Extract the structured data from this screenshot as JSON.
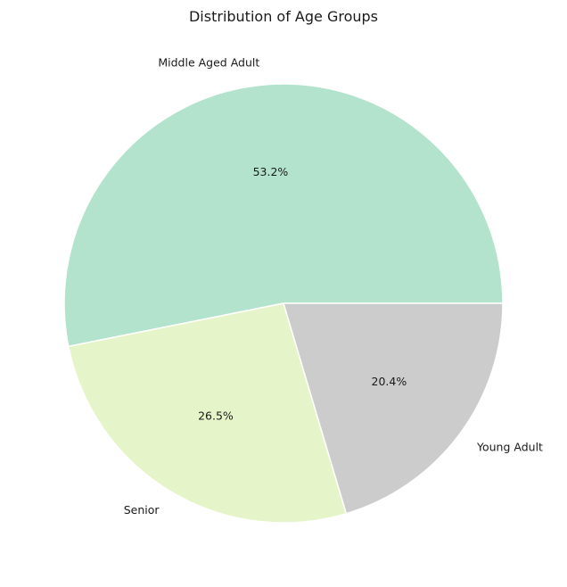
{
  "chart_data": {
    "type": "pie",
    "title": "Distribution of Age Groups",
    "slices": [
      {
        "label": "Middle Aged Adult",
        "value": 53.2,
        "pct_text": "53.2%",
        "color": "#b3e2cd"
      },
      {
        "label": "Senior",
        "value": 26.5,
        "pct_text": "26.5%",
        "color": "#e6f5c9"
      },
      {
        "label": "Young Adult",
        "value": 20.4,
        "pct_text": "20.4%",
        "color": "#cccccc"
      }
    ],
    "start_angle_deg": 0,
    "direction": "counterclockwise"
  }
}
